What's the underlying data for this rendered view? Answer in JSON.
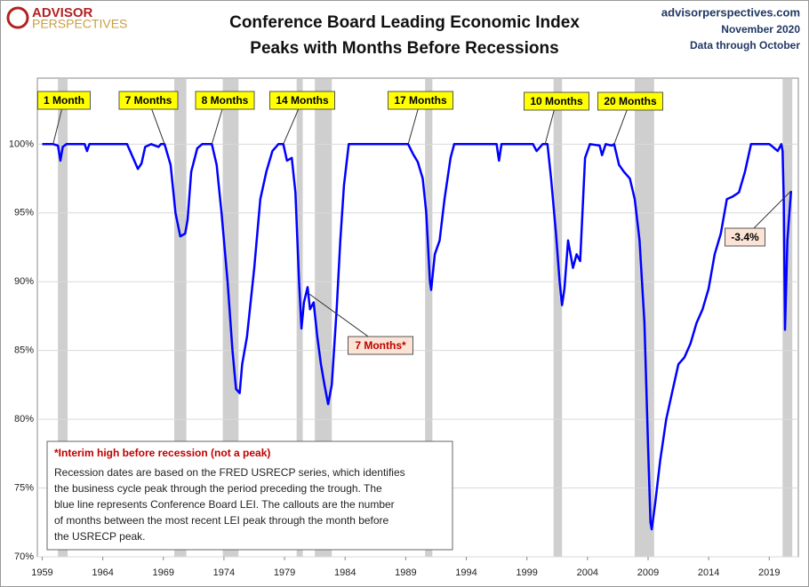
{
  "chart_data": {
    "type": "line",
    "title": "Conference Board Leading Economic Index",
    "subtitle": "Peaks with Months Before Recessions",
    "logo_top": "ADVISOR",
    "logo_bottom": "PERSPECTIVES",
    "source": "advisorperspectives.com",
    "date": "November 2020",
    "data_through": "Data through October",
    "xlim": [
      1958.6,
      2021.4
    ],
    "xticks": [
      1959,
      1964,
      1969,
      1974,
      1979,
      1984,
      1989,
      1994,
      1999,
      2004,
      2009,
      2014,
      2019
    ],
    "ylim": [
      70,
      104.8
    ],
    "yticks": [
      {
        "value": 70,
        "label": "70%"
      },
      {
        "value": 75,
        "label": "75%"
      },
      {
        "value": 80,
        "label": "80%"
      },
      {
        "value": 85,
        "label": "85%"
      },
      {
        "value": 90,
        "label": "90%"
      },
      {
        "value": 95,
        "label": "95%"
      },
      {
        "value": 100,
        "label": "100%"
      }
    ],
    "grid": true,
    "recession_color": "#cfcfcf",
    "recessions": [
      [
        1960.3,
        1961.1
      ],
      [
        1969.9,
        1970.9
      ],
      [
        1973.9,
        1975.2
      ],
      [
        1980.0,
        1980.5
      ],
      [
        1981.5,
        1982.9
      ],
      [
        1990.6,
        1991.2
      ],
      [
        2001.2,
        2001.9
      ],
      [
        2007.9,
        2009.5
      ],
      [
        2020.1,
        2020.9
      ]
    ],
    "series": [
      {
        "name": "Conference Board LEI",
        "color": "#0000ff",
        "x": [
          1959.0,
          1959.9,
          1960.3,
          1960.5,
          1960.7,
          1961.0,
          1962.5,
          1962.7,
          1962.9,
          1966.0,
          1966.5,
          1966.9,
          1967.2,
          1967.5,
          1968.0,
          1968.6,
          1968.8,
          1969.1,
          1969.6,
          1970.0,
          1970.4,
          1970.8,
          1971.0,
          1971.3,
          1971.8,
          1972.2,
          1973.0,
          1973.4,
          1973.8,
          1974.3,
          1974.7,
          1975.0,
          1975.3,
          1975.5,
          1975.9,
          1976.5,
          1977.0,
          1977.5,
          1978.0,
          1978.5,
          1978.9,
          1979.2,
          1979.6,
          1979.9,
          1980.2,
          1980.4,
          1980.6,
          1980.9,
          1981.1,
          1981.4,
          1981.7,
          1982.0,
          1982.3,
          1982.6,
          1982.9,
          1983.3,
          1983.6,
          1983.9,
          1984.3,
          1989.2,
          1989.6,
          1990.0,
          1990.4,
          1990.7,
          1991.0,
          1991.1,
          1991.4,
          1991.8,
          1992.2,
          1992.7,
          1993.0,
          1996.5,
          1996.7,
          1996.9,
          1999.5,
          1999.8,
          2000.3,
          2000.7,
          2001.0,
          2001.4,
          2001.7,
          2001.9,
          2002.1,
          2002.4,
          2002.8,
          2003.1,
          2003.4,
          2003.8,
          2004.2,
          2005.0,
          2005.2,
          2005.5,
          2006.0,
          2006.2,
          2006.6,
          2007.0,
          2007.5,
          2007.9,
          2008.3,
          2008.7,
          2009.0,
          2009.2,
          2009.3,
          2009.6,
          2010.0,
          2010.5,
          2011.0,
          2011.5,
          2012.0,
          2012.5,
          2013.0,
          2013.5,
          2014.0,
          2014.5,
          2015.0,
          2015.5,
          2016.0,
          2016.5,
          2017.0,
          2017.5,
          2019.0,
          2019.3,
          2019.7,
          2020.0,
          2020.1,
          2020.2,
          2020.3,
          2020.5,
          2020.7,
          2020.8
        ],
        "values": [
          100,
          100,
          99.9,
          98.8,
          99.8,
          100,
          100,
          99.5,
          100,
          100,
          99,
          98.2,
          98.6,
          99.8,
          100,
          99.8,
          100,
          100,
          98.5,
          95,
          93.3,
          93.5,
          94.5,
          98,
          99.7,
          100,
          100,
          98.5,
          95,
          90,
          85,
          82.2,
          81.9,
          84,
          86,
          91,
          96,
          98,
          99.5,
          100,
          100,
          98.8,
          99,
          96.5,
          90,
          86.6,
          88.5,
          89.6,
          88,
          88.5,
          86,
          84,
          82.5,
          81.1,
          82.5,
          88,
          93,
          97,
          100,
          100,
          99.3,
          98.7,
          97.5,
          95,
          90,
          89.4,
          92,
          93,
          96,
          99,
          100,
          100,
          98.8,
          100,
          100,
          99.5,
          100,
          100,
          97.5,
          93.5,
          90,
          88.3,
          89.5,
          93,
          91,
          92,
          91.5,
          99,
          100,
          99.9,
          99.2,
          100,
          99.9,
          100,
          98.5,
          98,
          97.5,
          96,
          93,
          87,
          78,
          72.5,
          72,
          74,
          77,
          80,
          82,
          84,
          84.5,
          85.5,
          87,
          88,
          89.5,
          92,
          93.5,
          96,
          96.2,
          96.5,
          98,
          100,
          100,
          99.8,
          99.5,
          100,
          99.5,
          96,
          86.5,
          93,
          95.5,
          96.6
        ]
      }
    ],
    "annotations": [
      {
        "text": "1 Month",
        "x": 1959.9,
        "y": 100,
        "fill": "#ffff00",
        "text_color": "#000000"
      },
      {
        "text": "7 Months",
        "x": 1969.1,
        "y": 100,
        "fill": "#ffff00",
        "text_color": "#000000"
      },
      {
        "text": "8 Months",
        "x": 1973.0,
        "y": 100,
        "fill": "#ffff00",
        "text_color": "#000000"
      },
      {
        "text": "14 Months",
        "x": 1978.9,
        "y": 100,
        "fill": "#ffff00",
        "text_color": "#000000"
      },
      {
        "text": "17 Months",
        "x": 1989.2,
        "y": 100,
        "fill": "#ffff00",
        "text_color": "#000000"
      },
      {
        "text": "10 Months",
        "x": 2000.5,
        "y": 100,
        "fill": "#ffff00",
        "text_color": "#000000"
      },
      {
        "text": "20 Months",
        "x": 2006.2,
        "y": 100,
        "fill": "#ffff00",
        "text_color": "#000000"
      },
      {
        "text": "7 Months*",
        "x": 1980.9,
        "y": 89.2,
        "fill": "#fbe4d5",
        "text_color": "#c00000"
      },
      {
        "text": "-3.4%",
        "x": 2020.8,
        "y": 96.6,
        "fill": "#fbe4d5",
        "text_color": "#000000"
      }
    ],
    "note_title": "*Interim high before recession (not a peak)",
    "note_lines": [
      "Recession dates are based on the FRED USRECP series, which identifies",
      "the business cycle peak through the period preceding the trough. The",
      "blue line represents Conference Board LEI. The callouts are the number",
      "of months between the most recent LEI peak through the month  before",
      "the USRECP peak."
    ]
  }
}
